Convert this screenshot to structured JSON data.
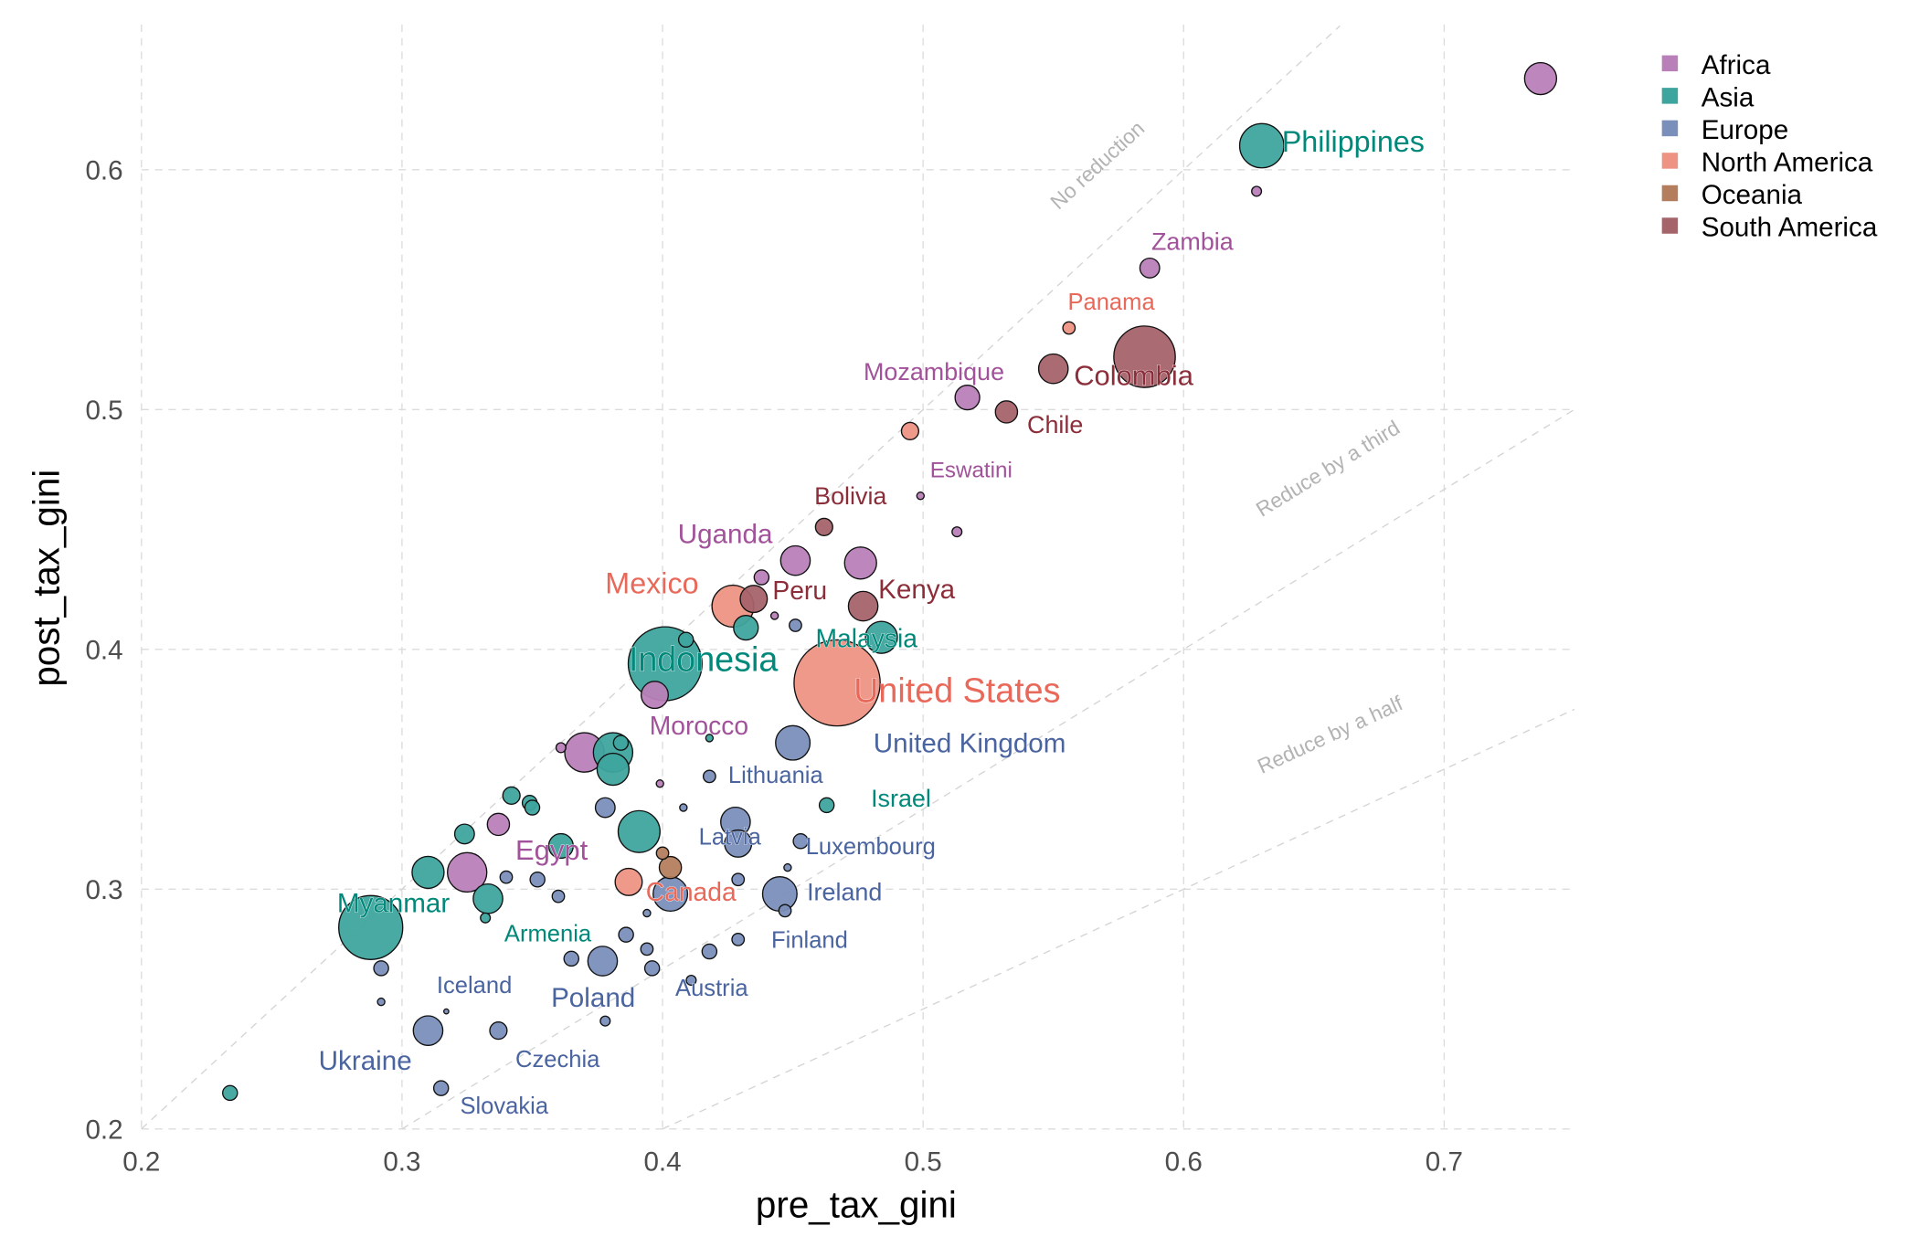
{
  "chart_data": {
    "type": "scatter",
    "xlabel": "pre_tax_gini",
    "ylabel": "post_tax_gini",
    "xlim": [
      0.2,
      0.75
    ],
    "ylim": [
      0.2,
      0.66
    ],
    "xticks": [
      "0.2",
      "0.3",
      "0.4",
      "0.5",
      "0.6",
      "0.7"
    ],
    "yticks": [
      "0.2",
      "0.3",
      "0.4",
      "0.5",
      "0.6"
    ],
    "grid": true,
    "legend_placement": "top-right",
    "legend": [
      {
        "name": "Africa",
        "color": "#B97FB8",
        "label_color": "#A2529A"
      },
      {
        "name": "Asia",
        "color": "#3EA59E",
        "label_color": "#00897B"
      },
      {
        "name": "Europe",
        "color": "#7A8FBA",
        "label_color": "#4A64A0"
      },
      {
        "name": "North America",
        "color": "#EE9384",
        "label_color": "#E8685A"
      },
      {
        "name": "Oceania",
        "color": "#B47E5E",
        "label_color": "#8B5A3C"
      },
      {
        "name": "South America",
        "color": "#A5636A",
        "label_color": "#8B2E3A"
      }
    ],
    "reference_lines": [
      {
        "label": "No reduction",
        "slope": 1
      },
      {
        "label": "Reduce by a third",
        "slope": 0.6667
      },
      {
        "label": "Reduce by a half",
        "slope": 0.5
      }
    ],
    "points": [
      {
        "x": 0.737,
        "y": 0.638,
        "c": "Africa",
        "s": 13
      },
      {
        "x": 0.63,
        "y": 0.61,
        "c": "Asia",
        "s": 18,
        "label": "Philippines"
      },
      {
        "x": 0.628,
        "y": 0.591,
        "c": "Africa",
        "s": 4
      },
      {
        "x": 0.587,
        "y": 0.559,
        "c": "Africa",
        "s": 8,
        "label": "Zambia"
      },
      {
        "x": 0.556,
        "y": 0.534,
        "c": "North America",
        "s": 5,
        "label": "Panama"
      },
      {
        "x": 0.585,
        "y": 0.522,
        "c": "South America",
        "s": 25,
        "label": "Colombia"
      },
      {
        "x": 0.55,
        "y": 0.517,
        "c": "South America",
        "s": 12
      },
      {
        "x": 0.517,
        "y": 0.505,
        "c": "Africa",
        "s": 10,
        "label": "Mozambique"
      },
      {
        "x": 0.532,
        "y": 0.499,
        "c": "South America",
        "s": 9,
        "label": "Chile"
      },
      {
        "x": 0.495,
        "y": 0.491,
        "c": "North America",
        "s": 7
      },
      {
        "x": 0.499,
        "y": 0.464,
        "c": "Africa",
        "s": 3,
        "label": "Eswatini"
      },
      {
        "x": 0.513,
        "y": 0.449,
        "c": "Africa",
        "s": 4
      },
      {
        "x": 0.462,
        "y": 0.451,
        "c": "South America",
        "s": 7,
        "label": "Bolivia"
      },
      {
        "x": 0.451,
        "y": 0.437,
        "c": "Africa",
        "s": 12,
        "label": "Uganda"
      },
      {
        "x": 0.476,
        "y": 0.436,
        "c": "Africa",
        "s": 13
      },
      {
        "x": 0.438,
        "y": 0.43,
        "c": "Africa",
        "s": 6
      },
      {
        "x": 0.477,
        "y": 0.418,
        "c": "South America",
        "s": 12,
        "label": "Kenya"
      },
      {
        "x": 0.427,
        "y": 0.418,
        "c": "North America",
        "s": 17,
        "label": "Mexico"
      },
      {
        "x": 0.435,
        "y": 0.421,
        "c": "South America",
        "s": 11,
        "label": "Peru"
      },
      {
        "x": 0.443,
        "y": 0.414,
        "c": "Africa",
        "s": 3
      },
      {
        "x": 0.451,
        "y": 0.41,
        "c": "Europe",
        "s": 5
      },
      {
        "x": 0.432,
        "y": 0.409,
        "c": "Asia",
        "s": 10
      },
      {
        "x": 0.484,
        "y": 0.405,
        "c": "Asia",
        "s": 13,
        "label": "Malaysia"
      },
      {
        "x": 0.409,
        "y": 0.404,
        "c": "Asia",
        "s": 6
      },
      {
        "x": 0.401,
        "y": 0.394,
        "c": "Asia",
        "s": 30,
        "label": "Indonesia"
      },
      {
        "x": 0.467,
        "y": 0.386,
        "c": "North America",
        "s": 35,
        "label": "United States"
      },
      {
        "x": 0.397,
        "y": 0.381,
        "c": "Africa",
        "s": 11,
        "label": "Morocco"
      },
      {
        "x": 0.45,
        "y": 0.361,
        "c": "Europe",
        "s": 14,
        "label": "United Kingdom"
      },
      {
        "x": 0.418,
        "y": 0.363,
        "c": "Asia",
        "s": 3
      },
      {
        "x": 0.37,
        "y": 0.357,
        "c": "Africa",
        "s": 16
      },
      {
        "x": 0.361,
        "y": 0.359,
        "c": "Africa",
        "s": 4
      },
      {
        "x": 0.381,
        "y": 0.35,
        "c": "Asia",
        "s": 13
      },
      {
        "x": 0.381,
        "y": 0.357,
        "c": "Asia",
        "s": 16
      },
      {
        "x": 0.384,
        "y": 0.361,
        "c": "Asia",
        "s": 6
      },
      {
        "x": 0.418,
        "y": 0.347,
        "c": "Europe",
        "s": 5,
        "label": "Lithuania"
      },
      {
        "x": 0.399,
        "y": 0.344,
        "c": "Africa",
        "s": 3
      },
      {
        "x": 0.342,
        "y": 0.339,
        "c": "Asia",
        "s": 7
      },
      {
        "x": 0.349,
        "y": 0.336,
        "c": "Asia",
        "s": 6
      },
      {
        "x": 0.35,
        "y": 0.334,
        "c": "Asia",
        "s": 6
      },
      {
        "x": 0.378,
        "y": 0.334,
        "c": "Europe",
        "s": 8
      },
      {
        "x": 0.408,
        "y": 0.334,
        "c": "Europe",
        "s": 3
      },
      {
        "x": 0.463,
        "y": 0.335,
        "c": "Asia",
        "s": 6,
        "label": "Israel"
      },
      {
        "x": 0.337,
        "y": 0.327,
        "c": "Africa",
        "s": 9
      },
      {
        "x": 0.428,
        "y": 0.328,
        "c": "Europe",
        "s": 12,
        "label": "Latvia"
      },
      {
        "x": 0.429,
        "y": 0.319,
        "c": "Europe",
        "s": 11
      },
      {
        "x": 0.324,
        "y": 0.323,
        "c": "Asia",
        "s": 8
      },
      {
        "x": 0.391,
        "y": 0.324,
        "c": "Asia",
        "s": 17
      },
      {
        "x": 0.361,
        "y": 0.318,
        "c": "Asia",
        "s": 10
      },
      {
        "x": 0.453,
        "y": 0.32,
        "c": "Europe",
        "s": 6,
        "label": "Luxembourg"
      },
      {
        "x": 0.4,
        "y": 0.315,
        "c": "Oceania",
        "s": 5
      },
      {
        "x": 0.325,
        "y": 0.307,
        "c": "Africa",
        "s": 16,
        "label": "Egypt"
      },
      {
        "x": 0.31,
        "y": 0.307,
        "c": "Asia",
        "s": 13
      },
      {
        "x": 0.34,
        "y": 0.305,
        "c": "Europe",
        "s": 5
      },
      {
        "x": 0.352,
        "y": 0.304,
        "c": "Europe",
        "s": 6
      },
      {
        "x": 0.403,
        "y": 0.309,
        "c": "Oceania",
        "s": 9
      },
      {
        "x": 0.448,
        "y": 0.309,
        "c": "Europe",
        "s": 3
      },
      {
        "x": 0.429,
        "y": 0.304,
        "c": "Europe",
        "s": 5
      },
      {
        "x": 0.387,
        "y": 0.303,
        "c": "North America",
        "s": 11,
        "label": "Canada"
      },
      {
        "x": 0.403,
        "y": 0.298,
        "c": "Europe",
        "s": 14
      },
      {
        "x": 0.445,
        "y": 0.298,
        "c": "Europe",
        "s": 14,
        "label": "Ireland"
      },
      {
        "x": 0.36,
        "y": 0.297,
        "c": "Europe",
        "s": 5
      },
      {
        "x": 0.333,
        "y": 0.296,
        "c": "Asia",
        "s": 12
      },
      {
        "x": 0.447,
        "y": 0.291,
        "c": "Europe",
        "s": 5
      },
      {
        "x": 0.288,
        "y": 0.284,
        "c": "Asia",
        "s": 26,
        "label": "Myanmar"
      },
      {
        "x": 0.332,
        "y": 0.288,
        "c": "Asia",
        "s": 4,
        "label": "Armenia"
      },
      {
        "x": 0.394,
        "y": 0.29,
        "c": "Europe",
        "s": 3
      },
      {
        "x": 0.386,
        "y": 0.281,
        "c": "Europe",
        "s": 6
      },
      {
        "x": 0.429,
        "y": 0.279,
        "c": "Europe",
        "s": 5,
        "label": "Finland"
      },
      {
        "x": 0.394,
        "y": 0.275,
        "c": "Europe",
        "s": 5
      },
      {
        "x": 0.418,
        "y": 0.274,
        "c": "Europe",
        "s": 6
      },
      {
        "x": 0.365,
        "y": 0.271,
        "c": "Europe",
        "s": 6
      },
      {
        "x": 0.377,
        "y": 0.27,
        "c": "Europe",
        "s": 12,
        "label": "Poland"
      },
      {
        "x": 0.396,
        "y": 0.267,
        "c": "Europe",
        "s": 6
      },
      {
        "x": 0.292,
        "y": 0.267,
        "c": "Europe",
        "s": 6
      },
      {
        "x": 0.411,
        "y": 0.262,
        "c": "Europe",
        "s": 4,
        "label": "Austria"
      },
      {
        "x": 0.292,
        "y": 0.253,
        "c": "Europe",
        "s": 3
      },
      {
        "x": 0.317,
        "y": 0.249,
        "c": "Europe",
        "s": 2,
        "label": "Iceland"
      },
      {
        "x": 0.378,
        "y": 0.245,
        "c": "Europe",
        "s": 4
      },
      {
        "x": 0.31,
        "y": 0.241,
        "c": "Europe",
        "s": 12,
        "label": "Ukraine"
      },
      {
        "x": 0.337,
        "y": 0.241,
        "c": "Europe",
        "s": 7,
        "label": "Czechia"
      },
      {
        "x": 0.315,
        "y": 0.217,
        "c": "Europe",
        "s": 6,
        "label": "Slovakia"
      },
      {
        "x": 0.234,
        "y": 0.215,
        "c": "Asia",
        "s": 6
      }
    ]
  }
}
